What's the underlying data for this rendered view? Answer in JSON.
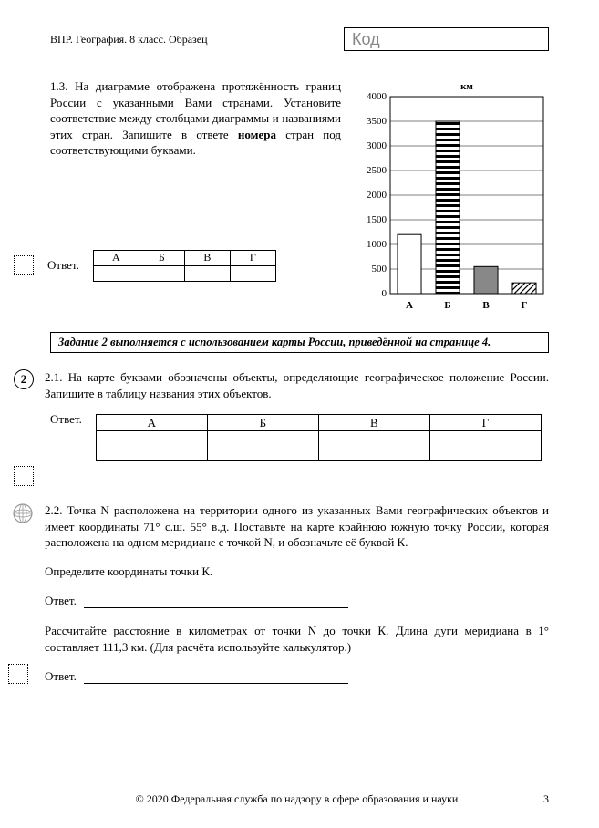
{
  "header": {
    "left": "ВПР. География. 8 класс. Образец",
    "kod": "Код"
  },
  "task13": {
    "text_parts": [
      "1.3. На диаграмме отображена протяжённость границ России с указанными Вами странами. Установите соответствие между столбцами диаграммы и названиями этих стран. Запишите в ответе ",
      " стран под соответствующими буквами."
    ],
    "underlined": "номера",
    "answer_label": "Ответ.",
    "cols": [
      "А",
      "Б",
      "В",
      "Г"
    ]
  },
  "chart": {
    "y_label": "км",
    "y_max": 4000,
    "y_tick": 500,
    "categories": [
      "А",
      "Б",
      "В",
      "Г"
    ],
    "values": [
      1200,
      3500,
      550,
      220
    ],
    "fills": [
      "white",
      "hstripe",
      "solid",
      "diag"
    ],
    "bar_color": "#000",
    "grid_color": "#000",
    "label_fontsize": 11
  },
  "instruction": "Задание 2 выполняется с использованием карты России, приведённой на странице 4.",
  "task21": {
    "num": "2",
    "text": "2.1. На карте буквами обозначены объекты, определяющие географическое положение России. Запишите в таблицу названия этих объектов.",
    "answer_label": "Ответ.",
    "cols": [
      "А",
      "Б",
      "В",
      "Г"
    ]
  },
  "task22": {
    "p1": "2.2. Точка N расположена на территории одного из указанных Вами географических объектов и имеет координаты 71° с.ш. 55° в.д. Поставьте на карте крайнюю южную точку России, которая расположена на одном меридиане с точкой N, и обозначьте её буквой К.",
    "p2": "Определите координаты точки К.",
    "ans1": "Ответ.",
    "p3": "Рассчитайте расстояние в километрах от точки N до точки К. Длина дуги меридиана в 1° составляет 111,3 км. (Для расчёта используйте калькулятор.)",
    "ans2": "Ответ."
  },
  "footer": {
    "copyright": "© 2020 Федеральная служба по надзору в сфере образования и науки",
    "page": "3"
  }
}
